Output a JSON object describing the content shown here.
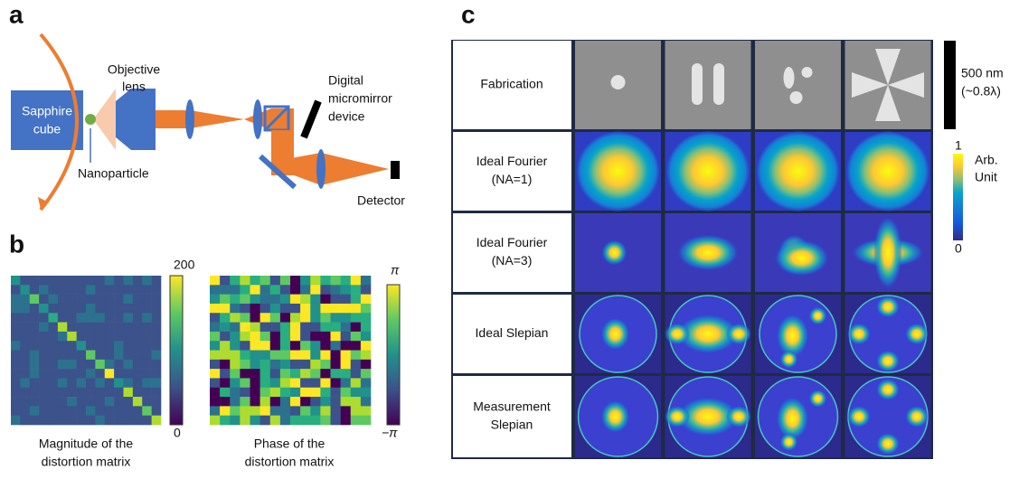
{
  "panel_a": {
    "label": "a",
    "sapphire_cube": [
      "Sapphire",
      "cube"
    ],
    "objective_lens": [
      "Objective",
      "lens"
    ],
    "nanoparticle": "Nanoparticle",
    "dmd": [
      "Digital",
      "micromirror",
      "device"
    ],
    "detector": "Detector"
  },
  "panel_b": {
    "label": "b",
    "magnitude": {
      "colorbar_max": 200,
      "colorbar_min": 0,
      "caption": [
        "Magnitude of the",
        "distortion matrix"
      ]
    },
    "phase": {
      "colorbar_max": "π",
      "colorbar_min": "−π",
      "caption": [
        "Phase of the",
        "distortion matrix"
      ]
    }
  },
  "panel_c": {
    "label": "c",
    "rows": [
      [
        "Fabrication"
      ],
      [
        "Ideal Fourier",
        "(NA=1)"
      ],
      [
        "Ideal Fourier",
        "(NA=3)"
      ],
      [
        "Ideal Slepian"
      ],
      [
        "Measurement",
        "Slepian"
      ]
    ],
    "scale_bar": [
      "500 nm",
      "(~0.8λ)"
    ],
    "colorbar_max": 1,
    "colorbar_unit": [
      "Arb.",
      "Unit"
    ],
    "colorbar_min": 0
  }
}
